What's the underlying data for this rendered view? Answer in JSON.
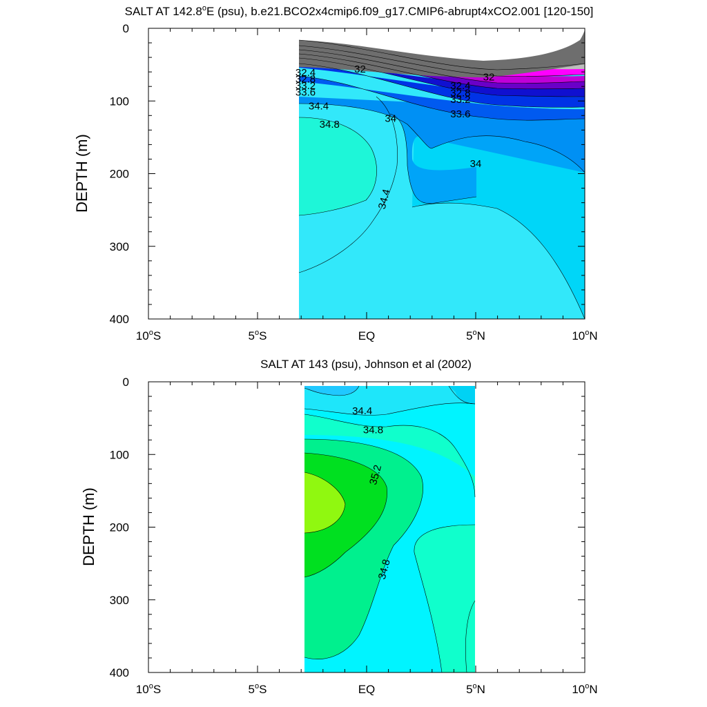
{
  "chart_data": [
    {
      "type": "contour",
      "title": "SALT AT 142.8°E (psu), b.e21.BCO2x4cmip6.f09_g17.CMIP6-abrupt4xCO2.001 [120-150]",
      "title_parts": {
        "pre": "SALT AT 142.8",
        "sup": "o",
        "post": "E (psu), b.e21.BCO2x4cmip6.f09_g17.CMIP6-abrupt4xCO2.001 [120-150]"
      },
      "ylabel": "DEPTH (m)",
      "xlabel": "",
      "xlim": [
        -10,
        10
      ],
      "ylim": [
        400,
        0
      ],
      "y_reversed": true,
      "x_ticks": [
        -10,
        -5,
        0,
        5,
        10
      ],
      "y_ticks": [
        0,
        100,
        200,
        300,
        400
      ],
      "x_tick_labels": [
        "10°S",
        "5°S",
        "EQ",
        "5°N",
        "10°N"
      ],
      "y_tick_labels": [
        "0",
        "100",
        "200",
        "300",
        "400"
      ],
      "data_extent_x": [
        -3.1,
        10
      ],
      "contour_levels": [
        32,
        32.4,
        32.8,
        33.2,
        33.6,
        34,
        34.4,
        34.8
      ],
      "contour_labels": [
        {
          "text": "32",
          "x": -0.3,
          "y": 56
        },
        {
          "text": "32",
          "x": 5.6,
          "y": 67
        },
        {
          "text": "32.4",
          "x": -2.8,
          "y": 61
        },
        {
          "text": "32.8",
          "x": -2.8,
          "y": 70
        },
        {
          "text": "33.2",
          "x": -2.8,
          "y": 79
        },
        {
          "text": "33.6",
          "x": -2.8,
          "y": 88
        },
        {
          "text": "32.4",
          "x": 4.3,
          "y": 79
        },
        {
          "text": "32.8",
          "x": 4.3,
          "y": 89
        },
        {
          "text": "33.2",
          "x": 4.3,
          "y": 98
        },
        {
          "text": "33.6",
          "x": 4.3,
          "y": 118
        },
        {
          "text": "34.4",
          "x": -2.2,
          "y": 107
        },
        {
          "text": "34",
          "x": 1.1,
          "y": 124
        },
        {
          "text": "34.8",
          "x": -1.7,
          "y": 132
        },
        {
          "text": "34",
          "x": 5.0,
          "y": 186
        },
        {
          "text": "34.4",
          "x": 0.8,
          "y": 235
        }
      ]
    },
    {
      "type": "contour",
      "title": "SALT AT 143 (psu), Johnson et al (2002)",
      "ylabel": "DEPTH (m)",
      "xlabel": "",
      "xlim": [
        -10,
        10
      ],
      "ylim": [
        400,
        0
      ],
      "y_reversed": true,
      "x_ticks": [
        -10,
        -5,
        0,
        5,
        10
      ],
      "y_ticks": [
        0,
        100,
        200,
        300,
        400
      ],
      "x_tick_labels": [
        "10°S",
        "5°S",
        "EQ",
        "5°N",
        "10°N"
      ],
      "y_tick_labels": [
        "0",
        "100",
        "200",
        "300",
        "400"
      ],
      "data_extent_x": [
        -2.8,
        5
      ],
      "data_extent_y": [
        5,
        400
      ],
      "contour_levels": [
        34.4,
        34.6,
        34.8,
        35.0,
        35.2,
        35.4
      ],
      "contour_labels": [
        {
          "text": "34.4",
          "x": -0.2,
          "y": 40
        },
        {
          "text": "34.8",
          "x": 0.3,
          "y": 66
        },
        {
          "text": "35.2",
          "x": 0.4,
          "y": 128
        },
        {
          "text": "34.8",
          "x": 0.8,
          "y": 258
        }
      ]
    }
  ]
}
